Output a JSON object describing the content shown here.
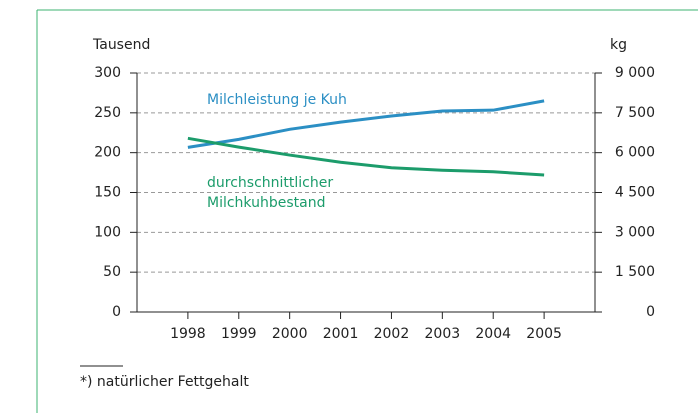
{
  "chart_data": {
    "type": "line",
    "y_unit_label": "Tausend",
    "y2_unit_label": "kg",
    "x": [
      1998,
      1999,
      2000,
      2001,
      2002,
      2003,
      2004,
      2005
    ],
    "xlim": [
      1997,
      2006
    ],
    "xticks": [
      1998,
      1999,
      2000,
      2001,
      2002,
      2003,
      2004,
      2005
    ],
    "ylim": [
      0,
      300
    ],
    "yticks": [
      0,
      50,
      100,
      150,
      200,
      250,
      300
    ],
    "y2lim": [
      0,
      9000
    ],
    "y2ticks": [
      0,
      {
        "value": 1500,
        "label": "1 500"
      },
      {
        "value": 3000,
        "label": "3 000"
      },
      {
        "value": 4500,
        "label": "4 500"
      },
      {
        "value": 6000,
        "label": "6 000"
      },
      {
        "value": 7500,
        "label": "7 500"
      },
      {
        "value": 9000,
        "label": "9 000"
      }
    ],
    "grid": true,
    "series": [
      {
        "name": "Milchleistung je Kuh",
        "color": "#2b8fc4",
        "axis": "y2",
        "values": [
          6200,
          6500,
          6880,
          7150,
          7380,
          7570,
          7600,
          7950
        ]
      },
      {
        "name": "durchschnittlicher Milchkuhbestand",
        "color": "#1c9c6b",
        "values": [
          218,
          207,
          197,
          188,
          181,
          178,
          176,
          172
        ]
      }
    ],
    "footnote": "*) natürlicher Fettgehalt"
  }
}
